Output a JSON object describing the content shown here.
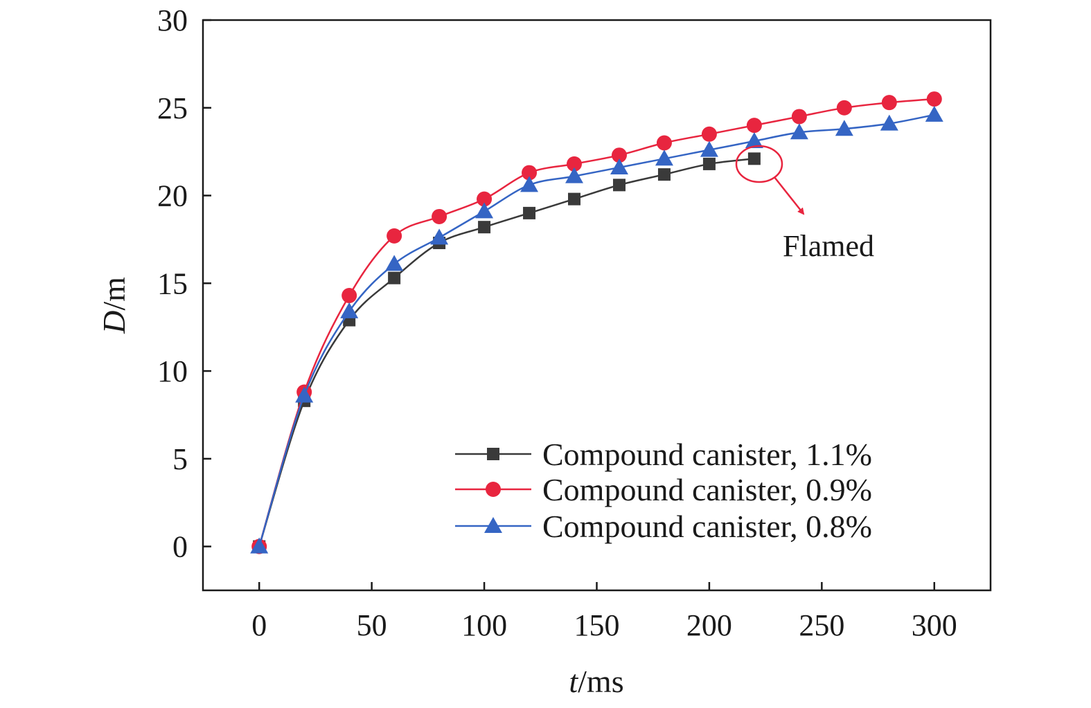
{
  "chart_data": {
    "type": "line",
    "xlabel": {
      "var": "t",
      "unit": "/ms"
    },
    "ylabel": {
      "var": "D",
      "unit": "/m"
    },
    "xlim": [
      -25,
      325
    ],
    "ylim": [
      -2.5,
      30
    ],
    "xticks": [
      0,
      50,
      100,
      150,
      200,
      250,
      300
    ],
    "yticks": [
      0,
      5,
      10,
      15,
      20,
      25,
      30
    ],
    "grid": false,
    "legend_position": "bottom-right",
    "series": [
      {
        "name": "Compound canister, 1.1%",
        "color": "#3a3a3a",
        "marker": "square",
        "x": [
          0,
          20,
          40,
          60,
          80,
          100,
          120,
          140,
          160,
          180,
          200,
          220
        ],
        "y": [
          0,
          8.3,
          12.9,
          15.3,
          17.3,
          18.2,
          19.0,
          19.8,
          20.6,
          21.2,
          21.8,
          22.1
        ]
      },
      {
        "name": "Compound canister, 0.9%",
        "color": "#e8253f",
        "marker": "circle",
        "x": [
          0,
          20,
          40,
          60,
          80,
          100,
          120,
          140,
          160,
          180,
          200,
          220,
          240,
          260,
          280,
          300
        ],
        "y": [
          0,
          8.8,
          14.3,
          17.7,
          18.8,
          19.8,
          21.3,
          21.8,
          22.3,
          23.0,
          23.5,
          24.0,
          24.5,
          25.0,
          25.3,
          25.5
        ]
      },
      {
        "name": "Compound canister, 0.8%",
        "color": "#3565c4",
        "marker": "triangle",
        "x": [
          0,
          20,
          40,
          60,
          80,
          100,
          120,
          140,
          160,
          180,
          200,
          220,
          240,
          260,
          280,
          300
        ],
        "y": [
          0,
          8.6,
          13.4,
          16.1,
          17.6,
          19.1,
          20.6,
          21.1,
          21.6,
          22.1,
          22.6,
          23.1,
          23.6,
          23.8,
          24.1,
          24.6
        ]
      }
    ],
    "annotation": {
      "text": "Flamed",
      "target_series": "Compound canister, 1.1%",
      "target_x": 220,
      "color": "#e8253f"
    }
  }
}
